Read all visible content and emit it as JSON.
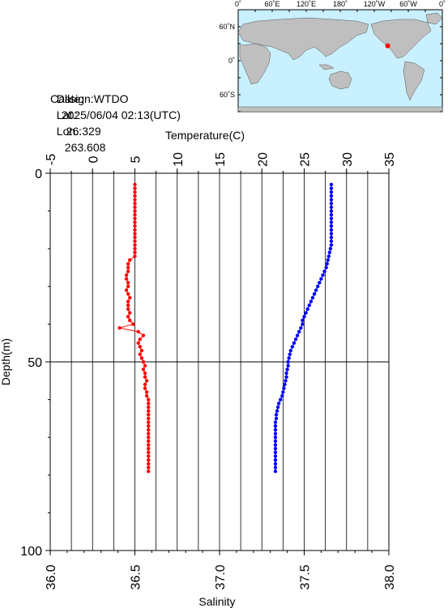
{
  "station": {
    "callsign_text": "Callsign:WTDO",
    "date_label": "Date:",
    "date_value": "2025/06/04 02:13(UTC)",
    "lat_label": "Lat.:",
    "lat_value": "26.329",
    "lon_label": "Lon.:",
    "lon_value": "263.608"
  },
  "map": {
    "lon_labels": [
      "0˚",
      "60˚E",
      "120˚E",
      "180˚",
      "120˚W",
      "60˚W",
      "0˚"
    ],
    "lat_labels": [
      "60˚N",
      "0˚",
      "60˚S"
    ],
    "ocean_color": "#c8f0ff",
    "land_color": "#bfbfbf",
    "marker_color": "#ff0000",
    "marker_lon": 263.608,
    "marker_lat": 26.329
  },
  "chart_data": {
    "type": "line",
    "top_axis_label": "Temperature(C)",
    "bottom_axis_label": "Salinity",
    "left_axis_label": "Depth(m)",
    "temperature_ticks": [
      "-5",
      "0",
      "5",
      "10",
      "15",
      "20",
      "25",
      "30",
      "35"
    ],
    "salinity_ticks": [
      "36.0",
      "36.5",
      "37.0",
      "37.5",
      "38.0"
    ],
    "depth_ticks": [
      "0",
      "50",
      "100"
    ],
    "temperature_range": [
      -5,
      35
    ],
    "salinity_range": [
      36.0,
      38.0
    ],
    "depth_range": [
      0,
      100
    ],
    "series": [
      {
        "color": "#ff0000",
        "axis": "salinity",
        "depth": [
          3,
          4,
          5,
          6,
          7,
          8,
          9,
          10,
          11,
          12,
          13,
          14,
          15,
          16,
          17,
          18,
          19,
          20,
          21,
          22,
          23,
          24,
          25,
          26,
          27,
          28,
          29,
          30,
          31,
          32,
          33,
          34,
          35,
          36,
          37,
          38,
          39,
          40,
          41,
          42,
          43,
          44,
          45,
          46,
          47,
          48,
          49,
          50,
          51,
          52,
          53,
          54,
          55,
          56,
          57,
          58,
          59,
          60,
          61,
          62,
          63,
          64,
          65,
          66,
          67,
          68,
          69,
          70,
          71,
          72,
          73,
          74,
          75,
          76,
          77,
          78,
          79
        ],
        "values": [
          36.5,
          36.5,
          36.5,
          36.5,
          36.5,
          36.5,
          36.5,
          36.5,
          36.5,
          36.5,
          36.5,
          36.5,
          36.5,
          36.5,
          36.5,
          36.5,
          36.5,
          36.5,
          36.5,
          36.5,
          36.47,
          36.46,
          36.46,
          36.46,
          36.45,
          36.45,
          36.46,
          36.46,
          36.45,
          36.46,
          36.47,
          36.46,
          36.46,
          36.46,
          36.47,
          36.46,
          36.47,
          36.49,
          36.41,
          36.52,
          36.55,
          36.53,
          36.52,
          36.53,
          36.54,
          36.53,
          36.54,
          36.55,
          36.56,
          36.55,
          36.56,
          36.56,
          36.57,
          36.56,
          36.56,
          36.57,
          36.57,
          36.58,
          36.58,
          36.58,
          36.58,
          36.58,
          36.58,
          36.58,
          36.58,
          36.58,
          36.58,
          36.58,
          36.58,
          36.58,
          36.58,
          36.58,
          36.58,
          36.58,
          36.58,
          36.58,
          36.58
        ]
      },
      {
        "color": "#0000ff",
        "axis": "temperature",
        "depth": [
          3,
          4,
          5,
          6,
          7,
          8,
          9,
          10,
          11,
          12,
          13,
          14,
          15,
          16,
          17,
          18,
          19,
          20,
          21,
          22,
          23,
          24,
          25,
          26,
          27,
          28,
          29,
          30,
          31,
          32,
          33,
          34,
          35,
          36,
          37,
          38,
          39,
          40,
          41,
          42,
          43,
          44,
          45,
          46,
          47,
          48,
          49,
          50,
          51,
          52,
          53,
          54,
          55,
          56,
          57,
          58,
          59,
          60,
          61,
          62,
          63,
          64,
          65,
          66,
          67,
          68,
          69,
          70,
          71,
          72,
          73,
          74,
          75,
          76,
          77,
          78,
          79
        ],
        "values": [
          28.2,
          28.2,
          28.2,
          28.2,
          28.2,
          28.2,
          28.2,
          28.2,
          28.2,
          28.2,
          28.2,
          28.2,
          28.2,
          28.2,
          28.2,
          28.2,
          28.2,
          28.1,
          28.0,
          27.9,
          27.8,
          27.7,
          27.6,
          27.4,
          27.2,
          27.0,
          26.8,
          26.6,
          26.4,
          26.2,
          26.0,
          25.8,
          25.6,
          25.4,
          25.2,
          25.0,
          24.8,
          24.8,
          24.6,
          24.4,
          24.2,
          24.0,
          23.8,
          23.6,
          23.4,
          23.3,
          23.2,
          23.1,
          23.1,
          23.0,
          22.9,
          22.9,
          22.8,
          22.7,
          22.6,
          22.5,
          22.4,
          22.2,
          22.0,
          21.9,
          21.8,
          21.7,
          21.7,
          21.6,
          21.6,
          21.6,
          21.6,
          21.6,
          21.6,
          21.6,
          21.6,
          21.6,
          21.6,
          21.6,
          21.6,
          21.6,
          21.6
        ]
      }
    ]
  }
}
